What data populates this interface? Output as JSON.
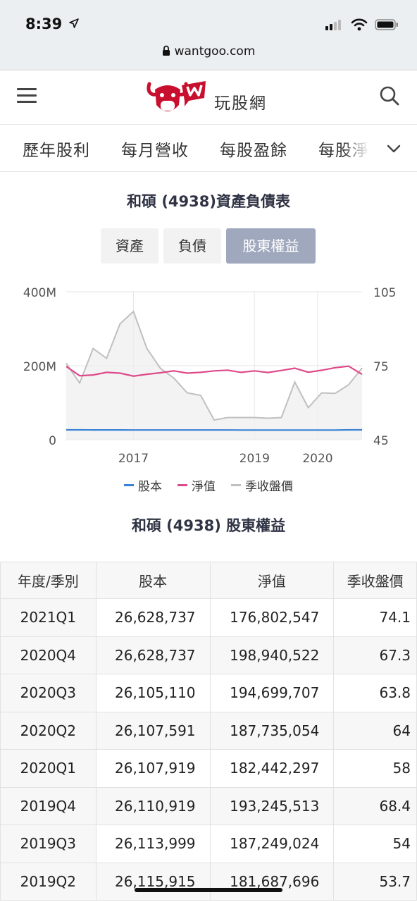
{
  "status_bar": {
    "time": "8:39",
    "url": "wantgoo.com"
  },
  "header": {
    "site_name": "玩股網"
  },
  "tabs": [
    "歷年股利",
    "每月營收",
    "每股盈餘",
    "每股淨"
  ],
  "colors": {
    "capital": "#3b82d6",
    "net_value": "#dd4a8a",
    "price": "#c0c0c0",
    "active_seg": "#a0a8bd"
  },
  "chart_title": "和碩 (4938)資產負債表",
  "segments": {
    "assets": "資產",
    "liabilities": "負債",
    "equity": "股東權益",
    "selected": "股東權益"
  },
  "chart_data": {
    "type": "line",
    "left_axis_ticks": [
      "400M",
      "200M",
      "0"
    ],
    "right_axis_ticks": [
      "105",
      "75",
      "45"
    ],
    "x_ticks": [
      "2017",
      "2019",
      "2020"
    ],
    "left_ylim": [
      0,
      400000000
    ],
    "right_ylim": [
      45,
      105
    ],
    "x_dates": [
      "2015Q3",
      "2015Q4",
      "2016Q1",
      "2016Q2",
      "2016Q3",
      "2016Q4",
      "2017Q1",
      "2017Q2",
      "2017Q3",
      "2017Q4",
      "2018Q1",
      "2018Q2",
      "2018Q3",
      "2018Q4",
      "2019Q1",
      "2019Q2",
      "2019Q3",
      "2019Q4",
      "2020Q1",
      "2020Q2",
      "2020Q3",
      "2020Q4",
      "2021Q1"
    ],
    "series": [
      {
        "name": "股本",
        "axis": "left",
        "values": [
          26600000,
          26600000,
          26500000,
          26500000,
          26400000,
          26300000,
          26300000,
          26200000,
          26200000,
          26200000,
          26200000,
          26200000,
          26200000,
          26100000,
          26100000,
          26115915,
          26113999,
          26110919,
          26107919,
          26107591,
          26105110,
          26628737,
          26628737
        ]
      },
      {
        "name": "淨值",
        "axis": "left",
        "values": [
          198000000,
          173000000,
          175000000,
          182000000,
          180000000,
          172000000,
          177000000,
          181000000,
          186000000,
          180000000,
          182000000,
          186000000,
          188000000,
          182000000,
          186000000,
          181687696,
          187249024,
          193245513,
          182442297,
          187735054,
          194699707,
          198940522,
          176802547
        ]
      },
      {
        "name": "季收盤價",
        "axis": "right",
        "values": [
          76,
          68,
          82,
          78,
          92,
          97,
          82,
          74,
          70,
          64,
          63,
          53,
          54,
          54,
          54,
          53.7,
          54,
          68.4,
          58,
          64,
          63.8,
          67.3,
          74.1
        ]
      }
    ],
    "legend": [
      "股本",
      "淨值",
      "季收盤價"
    ],
    "legend_position": "bottom"
  },
  "table_title": "和碩 (4938) 股東權益",
  "table": {
    "headers": [
      "年度/季別",
      "股本",
      "淨值",
      "季收盤價"
    ],
    "rows": [
      [
        "2021Q1",
        "26,628,737",
        "176,802,547",
        "74.1"
      ],
      [
        "2020Q4",
        "26,628,737",
        "198,940,522",
        "67.3"
      ],
      [
        "2020Q3",
        "26,105,110",
        "194,699,707",
        "63.8"
      ],
      [
        "2020Q2",
        "26,107,591",
        "187,735,054",
        "64"
      ],
      [
        "2020Q1",
        "26,107,919",
        "182,442,297",
        "58"
      ],
      [
        "2019Q4",
        "26,110,919",
        "193,245,513",
        "68.4"
      ],
      [
        "2019Q3",
        "26,113,999",
        "187,249,024",
        "54"
      ],
      [
        "2019Q2",
        "26,115,915",
        "181,687,696",
        "53.7"
      ]
    ]
  }
}
